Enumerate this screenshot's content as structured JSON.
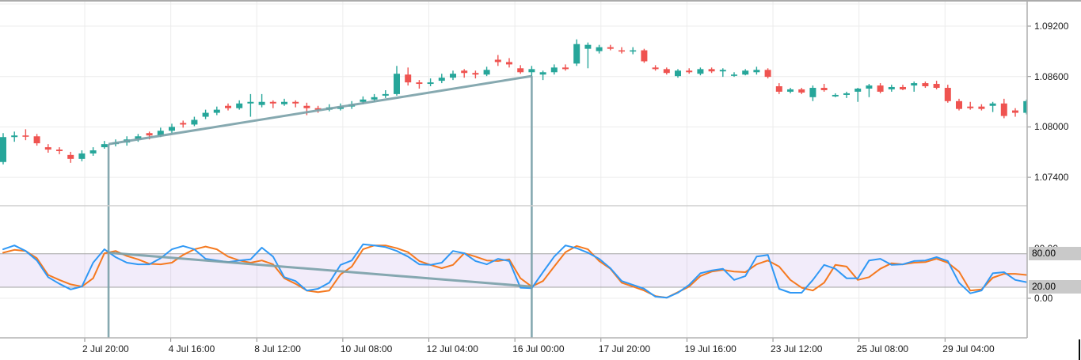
{
  "colors": {
    "background": "#ffffff",
    "up_candle": "#26a69a",
    "down_candle": "#ef5350",
    "k_line": "#2f98f5",
    "d_line": "#f5791f",
    "band_fill": "rgba(155,110,220,0.13)",
    "level_line": "#9a9a9a",
    "trend_line": "#7aa0a8",
    "grid_line": "#ececec",
    "axis_line": "#b3b3b3",
    "tick_mark": "#8a8a8a",
    "axis_text": "#1c1c1c",
    "badge_bg": "#c9c9c9"
  },
  "chart_data": {
    "type": "candlestick_with_oscillator",
    "price_pane": {
      "y_axis_ticks": [
        {
          "label": "1.09200",
          "value": 1.092
        },
        {
          "label": "1.08600",
          "value": 1.086
        },
        {
          "label": "1.08000",
          "value": 1.08
        },
        {
          "label": "1.07400",
          "value": 1.074
        }
      ],
      "ylim": [
        1.072,
        1.095
      ],
      "candles_format": [
        "open",
        "high",
        "low",
        "close"
      ],
      "candles": [
        [
          1.07582,
          1.07926,
          1.07554,
          1.07879
        ],
        [
          1.07879,
          1.07944,
          1.07823,
          1.07898
        ],
        [
          1.07898,
          1.07972,
          1.07842,
          1.07888
        ],
        [
          1.07888,
          1.07916,
          1.07777,
          1.07805
        ],
        [
          1.07758,
          1.07795,
          1.07693,
          1.0773
        ],
        [
          1.0773,
          1.07758,
          1.07675,
          1.07712
        ],
        [
          1.07666,
          1.07703,
          1.07572,
          1.07619
        ],
        [
          1.07619,
          1.07721,
          1.07591,
          1.07684
        ],
        [
          1.07684,
          1.07758,
          1.07656,
          1.07721
        ],
        [
          1.07758,
          1.07833,
          1.0774,
          1.07795
        ],
        [
          1.07795,
          1.07851,
          1.07768,
          1.07814
        ],
        [
          1.07814,
          1.07888,
          1.07777,
          1.07851
        ],
        [
          1.07851,
          1.07916,
          1.07823,
          1.07888
        ],
        [
          1.07926,
          1.07944,
          1.07851,
          1.07898
        ],
        [
          1.07898,
          1.07991,
          1.07879,
          1.07954
        ],
        [
          1.07954,
          1.08038,
          1.07926,
          1.08
        ],
        [
          1.08047,
          1.08075,
          1.07991,
          1.08028
        ],
        [
          1.08028,
          1.08121,
          1.08009,
          1.08084
        ],
        [
          1.08121,
          1.08205,
          1.08093,
          1.08168
        ],
        [
          1.08168,
          1.08242,
          1.0814,
          1.08205
        ],
        [
          1.08251,
          1.08279,
          1.08196,
          1.08223
        ],
        [
          1.08223,
          1.08316,
          1.08205,
          1.08279
        ],
        [
          1.08279,
          1.08391,
          1.08121,
          1.08298
        ],
        [
          1.08261,
          1.08391,
          1.08233,
          1.08298
        ],
        [
          1.08298,
          1.08316,
          1.08223,
          1.08279
        ],
        [
          1.0827,
          1.08335,
          1.08251,
          1.08298
        ],
        [
          1.08298,
          1.08316,
          1.08233,
          1.08279
        ],
        [
          1.08251,
          1.08288,
          1.0814,
          1.08223
        ],
        [
          1.08223,
          1.08251,
          1.08168,
          1.08205
        ],
        [
          1.08205,
          1.0827,
          1.08186,
          1.08233
        ],
        [
          1.08214,
          1.08279,
          1.08196,
          1.08242
        ],
        [
          1.08242,
          1.08307,
          1.08214,
          1.0827
        ],
        [
          1.08298,
          1.08363,
          1.0827,
          1.08326
        ],
        [
          1.08326,
          1.08391,
          1.08298,
          1.08354
        ],
        [
          1.08372,
          1.08437,
          1.08344,
          1.08391
        ],
        [
          1.08391,
          1.08726,
          1.08372,
          1.08633
        ],
        [
          1.08623,
          1.08707,
          1.08493,
          1.0853
        ],
        [
          1.0853,
          1.08558,
          1.08456,
          1.08512
        ],
        [
          1.08512,
          1.08577,
          1.08484,
          1.0853
        ],
        [
          1.08549,
          1.08633,
          1.08521,
          1.08586
        ],
        [
          1.08586,
          1.0867,
          1.08558,
          1.08633
        ],
        [
          1.0867,
          1.08688,
          1.08586,
          1.08642
        ],
        [
          1.08642,
          1.0867,
          1.08577,
          1.08623
        ],
        [
          1.08623,
          1.08716,
          1.08605,
          1.08679
        ],
        [
          1.088,
          1.08856,
          1.08726,
          1.08772
        ],
        [
          1.08772,
          1.08819,
          1.08707,
          1.08744
        ],
        [
          1.08698,
          1.08735,
          1.08633,
          1.08651
        ],
        [
          1.08651,
          1.08726,
          1.08605,
          1.08688
        ],
        [
          1.08623,
          1.0867,
          1.08558,
          1.08651
        ],
        [
          1.08651,
          1.08744,
          1.08623,
          1.08707
        ],
        [
          1.08707,
          1.08744,
          1.0867,
          1.08688
        ],
        [
          1.08754,
          1.09042,
          1.08726,
          1.08986
        ],
        [
          1.0893,
          1.09005,
          1.08698,
          1.08977
        ],
        [
          1.08902,
          1.08977,
          1.08874,
          1.08949
        ],
        [
          1.08949,
          1.08977,
          1.08912,
          1.0893
        ],
        [
          1.08912,
          1.08949,
          1.08874,
          1.08902
        ],
        [
          1.08902,
          1.08949,
          1.08865,
          1.08912
        ],
        [
          1.08912,
          1.0893,
          1.08763,
          1.08781
        ],
        [
          1.08707,
          1.08735,
          1.0867,
          1.08688
        ],
        [
          1.08688,
          1.08707,
          1.08623,
          1.08642
        ],
        [
          1.08605,
          1.08688,
          1.08586,
          1.0867
        ],
        [
          1.0867,
          1.08698,
          1.08633,
          1.08651
        ],
        [
          1.08633,
          1.08707,
          1.08614,
          1.08688
        ],
        [
          1.08688,
          1.08707,
          1.08642,
          1.08661
        ],
        [
          1.08661,
          1.08698,
          1.08596,
          1.08679
        ],
        [
          1.08614,
          1.08651,
          1.08596,
          1.08623
        ],
        [
          1.08623,
          1.08688,
          1.08614,
          1.0867
        ],
        [
          1.08651,
          1.08716,
          1.08623,
          1.08679
        ],
        [
          1.08679,
          1.08698,
          1.08577,
          1.08596
        ],
        [
          1.08484,
          1.08521,
          1.08391,
          1.08419
        ],
        [
          1.08419,
          1.08465,
          1.084,
          1.08447
        ],
        [
          1.08447,
          1.08465,
          1.08391,
          1.08409
        ],
        [
          1.08354,
          1.08493,
          1.08307,
          1.08465
        ],
        [
          1.08465,
          1.08512,
          1.08419,
          1.08437
        ],
        [
          1.08363,
          1.084,
          1.08354,
          1.08381
        ],
        [
          1.08381,
          1.08419,
          1.08344,
          1.084
        ],
        [
          1.08419,
          1.08465,
          1.08298,
          1.08456
        ],
        [
          1.08456,
          1.08512,
          1.08354,
          1.08493
        ],
        [
          1.08493,
          1.08521,
          1.084,
          1.08419
        ],
        [
          1.08447,
          1.08502,
          1.08419,
          1.08475
        ],
        [
          1.08475,
          1.08502,
          1.08437,
          1.08447
        ],
        [
          1.08493,
          1.0854,
          1.08419,
          1.08521
        ],
        [
          1.08521,
          1.0854,
          1.08465,
          1.08484
        ],
        [
          1.08512,
          1.08549,
          1.08447,
          1.08465
        ],
        [
          1.08465,
          1.08502,
          1.08288,
          1.08307
        ],
        [
          1.08307,
          1.08335,
          1.08196,
          1.08214
        ],
        [
          1.08242,
          1.08298,
          1.08205,
          1.08223
        ],
        [
          1.08242,
          1.0827,
          1.08196,
          1.08214
        ],
        [
          1.08251,
          1.08298,
          1.08177,
          1.08279
        ],
        [
          1.08279,
          1.08335,
          1.08103,
          1.0813
        ],
        [
          1.08196,
          1.08223,
          1.08121,
          1.08168
        ],
        [
          1.08168,
          1.08326,
          1.08149,
          1.08307
        ]
      ]
    },
    "indicator_pane": {
      "name": "stochastic-oscillator",
      "ylim": [
        0,
        100
      ],
      "band": [
        20,
        80
      ],
      "levels": [
        {
          "value": 80,
          "label": "80.00"
        },
        {
          "value": 20,
          "label": "20.00"
        }
      ],
      "y_axis_ticks": [
        {
          "label": "80.00",
          "value": 80
        },
        {
          "label": "0.00",
          "value": 0
        }
      ],
      "badges": [
        {
          "label": "80.00",
          "value": 80
        },
        {
          "label": "20.00",
          "value": 20
        }
      ],
      "k_values": [
        88,
        95,
        85,
        68,
        38,
        26,
        16,
        21,
        64,
        88,
        74,
        64,
        61,
        61,
        72,
        88,
        94,
        88,
        71,
        68,
        65,
        68,
        70,
        91,
        75,
        38,
        31,
        14,
        17,
        28,
        60,
        68,
        97,
        95,
        92,
        85,
        75,
        61,
        60,
        64,
        85,
        81,
        67,
        61,
        71,
        67,
        19,
        18,
        47,
        75,
        95,
        90,
        82,
        71,
        54,
        31,
        24,
        17,
        3,
        1,
        10,
        24,
        45,
        50,
        53,
        33,
        40,
        75,
        78,
        17,
        10,
        10,
        33,
        60,
        53,
        36,
        36,
        68,
        71,
        60,
        61,
        67,
        68,
        74,
        67,
        28,
        9,
        14,
        45,
        47,
        33,
        29
      ],
      "d_values": [
        82,
        87,
        85,
        72,
        42,
        33,
        25,
        21,
        36,
        81,
        85,
        76,
        70,
        62,
        61,
        64,
        78,
        88,
        93,
        88,
        75,
        68,
        64,
        68,
        61,
        36,
        26,
        14,
        11,
        14,
        43,
        57,
        88,
        95,
        95,
        90,
        83,
        67,
        60,
        54,
        60,
        81,
        75,
        68,
        67,
        70,
        36,
        21,
        31,
        57,
        83,
        94,
        88,
        67,
        53,
        28,
        21,
        14,
        4,
        1,
        11,
        21,
        40,
        48,
        51,
        48,
        47,
        61,
        68,
        57,
        33,
        19,
        14,
        28,
        60,
        57,
        33,
        38,
        53,
        63,
        61,
        64,
        65,
        71,
        64,
        48,
        14,
        16,
        37,
        44,
        44,
        42
      ]
    },
    "x_axis": {
      "labels": [
        "2 Jul 20:00",
        "4 Jul 16:00",
        "8 Jul 12:00",
        "10 Jul 08:00",
        "12 Jul 04:00",
        "16 Jul 00:00",
        "17 Jul 20:00",
        "19 Jul 16:00",
        "23 Jul 12:00",
        "25 Jul 08:00",
        "29 Jul 04:00"
      ]
    },
    "drawings": {
      "price_trendline": {
        "from_bar": 9.37,
        "from_price": 1.07795,
        "to_bar": 47,
        "to_price": 1.08605
      },
      "indicator_trendline": {
        "from_bar": 9.37,
        "from_value": 82,
        "to_bar": 47,
        "to_value": 21
      },
      "vertical_lines": [
        {
          "bar": 9.37,
          "from_price": 1.07795
        },
        {
          "bar": 47,
          "from_price": 1.08605
        }
      ]
    }
  }
}
